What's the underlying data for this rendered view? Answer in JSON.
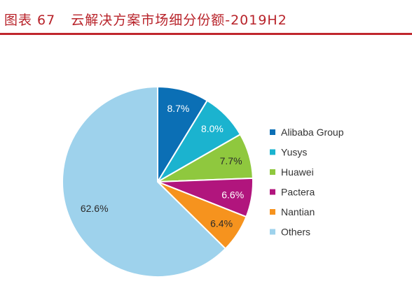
{
  "figure": {
    "number": "图表 67",
    "title": "云解决方案市场细分份额-2019H2"
  },
  "chart_data": {
    "type": "pie",
    "title": "",
    "start_angle_deg": 0,
    "direction": "clockwise",
    "legend_position": "right",
    "slices": [
      {
        "name": "Alibaba Group",
        "value": 8.7,
        "label": "8.7%",
        "color": "#0b6fb5",
        "label_color": "#ffffff"
      },
      {
        "name": "Yusys",
        "value": 8.0,
        "label": "8.0%",
        "color": "#1bb3cf",
        "label_color": "#ffffff"
      },
      {
        "name": "Huawei",
        "value": 7.7,
        "label": "7.7%",
        "color": "#8fc83e",
        "label_color": "#2b2b2b"
      },
      {
        "name": "Pactera",
        "value": 6.6,
        "label": "6.6%",
        "color": "#b1157d",
        "label_color": "#ffffff"
      },
      {
        "name": "Nantian",
        "value": 6.4,
        "label": "6.4%",
        "color": "#f6931e",
        "label_color": "#2b2b2b"
      },
      {
        "name": "Others",
        "value": 62.6,
        "label": "62.6%",
        "color": "#9ed2ec",
        "label_color": "#2b2b2b"
      }
    ]
  }
}
